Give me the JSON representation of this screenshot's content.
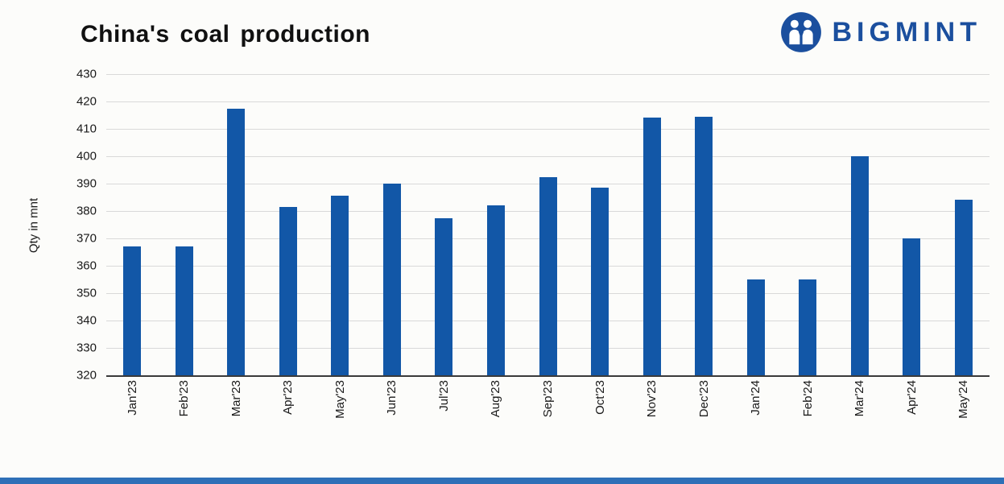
{
  "header": {
    "title": "China's coal production",
    "logo_text": "BIGMINT"
  },
  "colors": {
    "bar": "#1257a7",
    "brand": "#1b4f9e",
    "gridline": "#d9d9d9",
    "baseline": "#3a3a3a",
    "bottom_strip": "#2e6fb7"
  },
  "chart_data": {
    "type": "bar",
    "title": "China's coal production",
    "xlabel": "",
    "ylabel": "Qty in mnt",
    "ylim": [
      320,
      430
    ],
    "ytick_step": 10,
    "grid": true,
    "legend_position": "none",
    "categories": [
      "Jan'23",
      "Feb'23",
      "Mar'23",
      "Apr'23",
      "May'23",
      "Jun'23",
      "Jul'23",
      "Aug'23",
      "Sep'23",
      "Oct'23",
      "Nov'23",
      "Dec'23",
      "Jan'24",
      "Feb'24",
      "Mar'24",
      "Apr'24",
      "May'24"
    ],
    "values": [
      367,
      367,
      417.5,
      381.5,
      385.5,
      390,
      377.5,
      382,
      392.5,
      388.5,
      414,
      414.5,
      355,
      355,
      400,
      370,
      384
    ]
  }
}
